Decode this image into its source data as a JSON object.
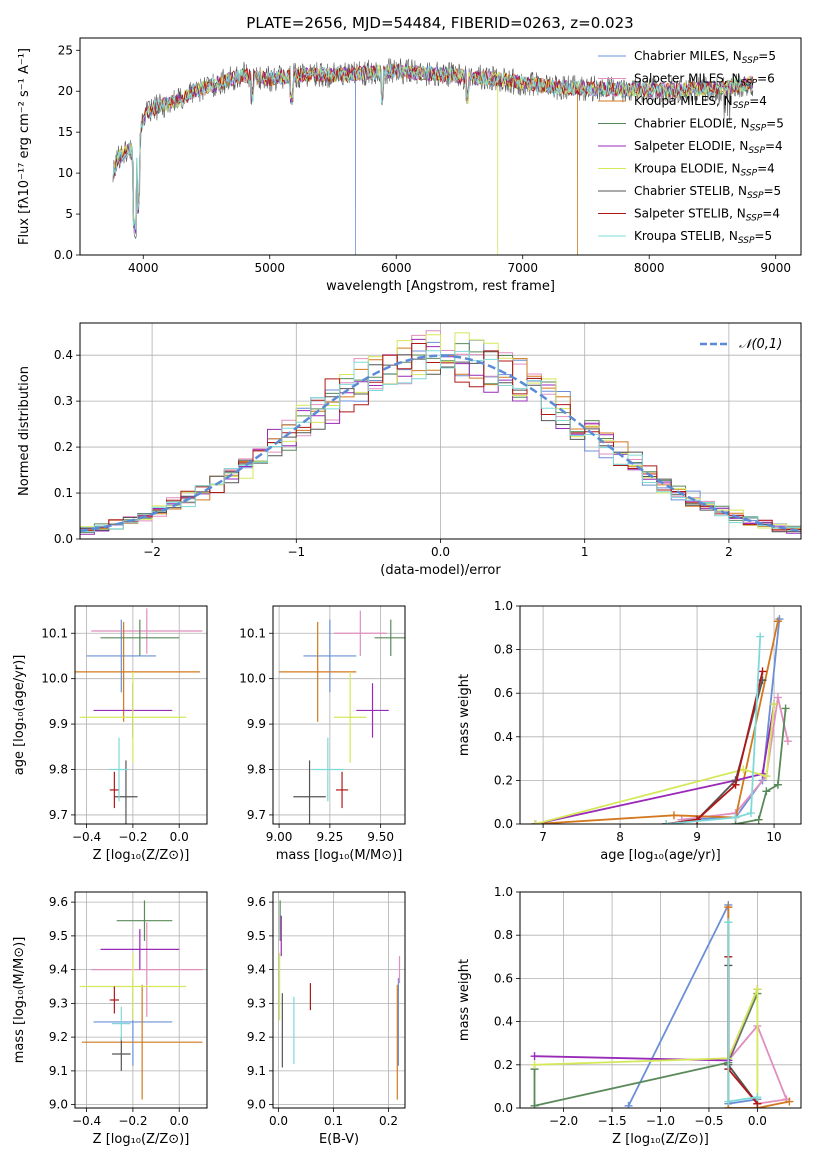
{
  "figure": {
    "title": "PLATE=2656, MJD=54484, FIBERID=0263, z=0.023"
  },
  "colors": {
    "Chabrier MILES": "#6a8fd8",
    "Salpeter MILES": "#e08fbf",
    "Kroupa MILES": "#d2781e",
    "Chabrier ELODIE": "#5a8a5a",
    "Salpeter ELODIE": "#9a2ab8",
    "Kroupa ELODIE": "#d4e85a",
    "Chabrier STELIB": "#555555",
    "Salpeter STELIB": "#b01818",
    "Kroupa STELIB": "#7fd8d8"
  },
  "chart_data": [
    {
      "id": "spectrum",
      "type": "line",
      "xlabel": "wavelength [Angstrom, rest frame]",
      "ylabel": "Flux [fλ10⁻¹⁷ erg cm⁻² s⁻¹ A⁻¹]",
      "xlim": [
        3500,
        9200
      ],
      "ylim": [
        0,
        26.5
      ],
      "xticks": [
        4000,
        5000,
        6000,
        7000,
        8000,
        9000
      ],
      "yticks": [
        0,
        5,
        10,
        15,
        20,
        25
      ],
      "grid": false,
      "legend_position": "upper right",
      "continuum_x": [
        3750,
        3800,
        3900,
        3950,
        4000,
        4100,
        4200,
        4300,
        4400,
        4600,
        4800,
        5000,
        5200,
        5400,
        5600,
        5800,
        6000,
        6200,
        6400,
        6600,
        6800,
        7000,
        7200,
        7400,
        7600,
        7800,
        8000,
        8200,
        8400,
        8600,
        8800
      ],
      "continuum_y": [
        9,
        12,
        13,
        11,
        17,
        18,
        18.5,
        19,
        20,
        21,
        22,
        21.5,
        22,
        22,
        22,
        22.3,
        22.5,
        22.2,
        22,
        21.7,
        21.5,
        21,
        20.6,
        20.4,
        20.3,
        20.2,
        20.1,
        20.1,
        20.3,
        20.4,
        21
      ],
      "series": [
        {
          "name": "Chabrier MILES, N_SSP=5",
          "color_key": "Chabrier MILES",
          "dropout_x": 5680
        },
        {
          "name": "Salpeter MILES, N_SSP=6",
          "color_key": "Salpeter MILES",
          "dropout_x": null
        },
        {
          "name": "Kroupa MILES, N_SSP=4",
          "color_key": "Kroupa MILES",
          "dropout_x": 7430
        },
        {
          "name": "Chabrier ELODIE, N_SSP=5",
          "color_key": "Chabrier ELODIE",
          "dropout_x": null
        },
        {
          "name": "Salpeter ELODIE, N_SSP=4",
          "color_key": "Salpeter ELODIE",
          "dropout_x": null
        },
        {
          "name": "Kroupa ELODIE, N_SSP=4",
          "color_key": "Kroupa ELODIE",
          "dropout_x": 6800
        },
        {
          "name": "Chabrier STELIB, N_SSP=5",
          "color_key": "Chabrier STELIB",
          "dropout_x": null
        },
        {
          "name": "Salpeter STELIB, N_SSP=4",
          "color_key": "Salpeter STELIB",
          "dropout_x": null
        },
        {
          "name": "Kroupa STELIB, N_SSP=5",
          "color_key": "Kroupa STELIB",
          "dropout_x": null
        }
      ]
    },
    {
      "id": "residuals",
      "type": "line",
      "xlabel": "(data-model)/error",
      "ylabel": "Normed distribution",
      "xlim": [
        -2.5,
        2.5
      ],
      "ylim": [
        0,
        0.47
      ],
      "xticks": [
        -2,
        -1,
        0,
        1,
        2
      ],
      "yticks": [
        0.0,
        0.1,
        0.2,
        0.3,
        0.4
      ],
      "grid": true,
      "legend_position": "upper right",
      "bin_width": 0.1,
      "reference": {
        "label": "𝒩(0,1)",
        "mean": 0,
        "sigma": 1
      },
      "series_keys": [
        "Chabrier MILES",
        "Salpeter MILES",
        "Kroupa MILES",
        "Chabrier ELODIE",
        "Salpeter ELODIE",
        "Kroupa ELODIE",
        "Chabrier STELIB",
        "Salpeter STELIB",
        "Kroupa STELIB"
      ]
    },
    {
      "id": "age_vs_Z",
      "type": "scatter",
      "xlabel": "Z [log₁₀(Z/Z⊙)]",
      "ylabel": "age  [log₁₀(age/yr)]",
      "xlim": [
        -0.45,
        0.12
      ],
      "ylim": [
        9.68,
        10.16
      ],
      "xticks": [
        -0.4,
        -0.2,
        0.0
      ],
      "yticks": [
        9.7,
        9.8,
        9.9,
        10.0,
        10.1
      ],
      "grid": true,
      "points": [
        {
          "key": "Chabrier MILES",
          "x": -0.25,
          "xerr": 0.15,
          "y": 10.05,
          "yerr": 0.08
        },
        {
          "key": "Salpeter MILES",
          "x": -0.14,
          "xerr": 0.24,
          "y": 10.105,
          "yerr": 0.05
        },
        {
          "key": "Kroupa MILES",
          "x": -0.24,
          "xerr": 0.33,
          "y": 10.015,
          "yerr": 0.11
        },
        {
          "key": "Chabrier ELODIE",
          "x": -0.17,
          "xerr": 0.17,
          "y": 10.09,
          "yerr": 0.04
        },
        {
          "key": "Salpeter ELODIE",
          "x": -0.2,
          "xerr": 0.17,
          "y": 9.93,
          "yerr": 0.06
        },
        {
          "key": "Kroupa ELODIE",
          "x": -0.2,
          "xerr": 0.23,
          "y": 9.915,
          "yerr": 0.1
        },
        {
          "key": "Chabrier STELIB",
          "x": -0.23,
          "xerr": 0.05,
          "y": 9.74,
          "yerr": 0.08
        },
        {
          "key": "Salpeter STELIB",
          "x": -0.28,
          "xerr": 0.02,
          "y": 9.755,
          "yerr": 0.04
        },
        {
          "key": "Kroupa STELIB",
          "x": -0.26,
          "xerr": 0.04,
          "y": 9.8,
          "yerr": 0.07
        }
      ]
    },
    {
      "id": "age_vs_mass",
      "type": "scatter",
      "xlabel": "mass [log₁₀(M/M⊙)]",
      "ylabel": "",
      "xlim": [
        8.97,
        9.62
      ],
      "ylim": [
        9.68,
        10.16
      ],
      "xticks": [
        9.0,
        9.25,
        9.5
      ],
      "yticks": [
        9.7,
        9.8,
        9.9,
        10.0,
        10.1
      ],
      "grid": true,
      "points": [
        {
          "key": "Chabrier MILES",
          "x": 9.25,
          "xerr": 0.13,
          "y": 10.05,
          "yerr": 0.08
        },
        {
          "key": "Salpeter MILES",
          "x": 9.4,
          "xerr": 0.13,
          "y": 10.1,
          "yerr": 0.05
        },
        {
          "key": "Kroupa MILES",
          "x": 9.19,
          "xerr": 0.19,
          "y": 10.015,
          "yerr": 0.11
        },
        {
          "key": "Chabrier ELODIE",
          "x": 9.55,
          "xerr": 0.08,
          "y": 10.09,
          "yerr": 0.04
        },
        {
          "key": "Salpeter ELODIE",
          "x": 9.46,
          "xerr": 0.08,
          "y": 9.93,
          "yerr": 0.06
        },
        {
          "key": "Kroupa ELODIE",
          "x": 9.35,
          "xerr": 0.08,
          "y": 9.915,
          "yerr": 0.1
        },
        {
          "key": "Chabrier STELIB",
          "x": 9.15,
          "xerr": 0.08,
          "y": 9.74,
          "yerr": 0.08
        },
        {
          "key": "Salpeter STELIB",
          "x": 9.31,
          "xerr": 0.03,
          "y": 9.755,
          "yerr": 0.04
        },
        {
          "key": "Kroupa STELIB",
          "x": 9.24,
          "xerr": 0.08,
          "y": 9.8,
          "yerr": 0.07
        }
      ]
    },
    {
      "id": "weight_vs_age",
      "type": "line",
      "xlabel": "age  [log₁₀(age/yr)]",
      "ylabel": "mass weight",
      "xlim": [
        6.7,
        10.35
      ],
      "ylim": [
        0,
        1.0
      ],
      "xticks": [
        7,
        8,
        9,
        10
      ],
      "yticks": [
        0.0,
        0.2,
        0.4,
        0.6,
        0.8,
        1.0
      ],
      "grid": true,
      "series": [
        {
          "key": "Chabrier MILES",
          "x": [
            8.8,
            9.5,
            9.85,
            10.07
          ],
          "y": [
            0.02,
            0.03,
            0.2,
            0.94
          ]
        },
        {
          "key": "Salpeter MILES",
          "x": [
            8.8,
            9.5,
            9.9,
            10.05,
            10.18
          ],
          "y": [
            0.02,
            0.05,
            0.22,
            0.58,
            0.38
          ]
        },
        {
          "key": "Kroupa MILES",
          "x": [
            6.9,
            8.7,
            9.5,
            10.05
          ],
          "y": [
            0.0,
            0.04,
            0.03,
            0.93
          ]
        },
        {
          "key": "Chabrier ELODIE",
          "x": [
            9.5,
            9.8,
            9.9,
            10.05,
            10.15
          ],
          "y": [
            0.0,
            0.02,
            0.15,
            0.18,
            0.53
          ]
        },
        {
          "key": "Salpeter ELODIE",
          "x": [
            6.9,
            9.5,
            9.85,
            10.0
          ],
          "y": [
            0.0,
            0.2,
            0.23,
            0.55
          ]
        },
        {
          "key": "Kroupa ELODIE",
          "x": [
            6.9,
            9.6,
            9.9,
            10.0
          ],
          "y": [
            0.0,
            0.25,
            0.22,
            0.55
          ]
        },
        {
          "key": "Chabrier STELIB",
          "x": [
            8.6,
            9.0,
            9.5,
            9.85
          ],
          "y": [
            0.0,
            0.02,
            0.2,
            0.66
          ]
        },
        {
          "key": "Salpeter STELIB",
          "x": [
            8.6,
            9.0,
            9.5,
            9.85
          ],
          "y": [
            0.0,
            0.02,
            0.18,
            0.7
          ]
        },
        {
          "key": "Kroupa STELIB",
          "x": [
            8.6,
            9.5,
            9.7,
            9.82
          ],
          "y": [
            0.0,
            0.03,
            0.05,
            0.86
          ]
        }
      ]
    },
    {
      "id": "mass_vs_Z",
      "type": "scatter",
      "xlabel": "Z [log₁₀(Z/Z⊙)]",
      "ylabel": "mass [log₁₀(M/M⊙)]",
      "xlim": [
        -0.45,
        0.12
      ],
      "ylim": [
        8.99,
        9.63
      ],
      "xticks": [
        -0.4,
        -0.2,
        0.0
      ],
      "yticks": [
        9.0,
        9.1,
        9.2,
        9.3,
        9.4,
        9.5,
        9.6
      ],
      "grid": true,
      "points": [
        {
          "key": "Chabrier MILES",
          "x": -0.2,
          "xerr": 0.17,
          "y": 9.245,
          "yerr": 0.13
        },
        {
          "key": "Salpeter MILES",
          "x": -0.14,
          "xerr": 0.24,
          "y": 9.4,
          "yerr": 0.14
        },
        {
          "key": "Kroupa MILES",
          "x": -0.16,
          "xerr": 0.26,
          "y": 9.185,
          "yerr": 0.17
        },
        {
          "key": "Chabrier ELODIE",
          "x": -0.15,
          "xerr": 0.12,
          "y": 9.545,
          "yerr": 0.06
        },
        {
          "key": "Salpeter ELODIE",
          "x": -0.17,
          "xerr": 0.17,
          "y": 9.46,
          "yerr": 0.06
        },
        {
          "key": "Kroupa ELODIE",
          "x": -0.2,
          "xerr": 0.23,
          "y": 9.35,
          "yerr": 0.1
        },
        {
          "key": "Chabrier STELIB",
          "x": -0.25,
          "xerr": 0.04,
          "y": 9.15,
          "yerr": 0.05
        },
        {
          "key": "Salpeter STELIB",
          "x": -0.28,
          "xerr": 0.02,
          "y": 9.31,
          "yerr": 0.04
        },
        {
          "key": "Kroupa STELIB",
          "x": -0.25,
          "xerr": 0.04,
          "y": 9.24,
          "yerr": 0.05
        }
      ]
    },
    {
      "id": "mass_vs_ebv",
      "type": "scatter",
      "xlabel": "E(B-V)",
      "ylabel": "",
      "xlim": [
        -0.01,
        0.23
      ],
      "ylim": [
        8.99,
        9.63
      ],
      "xticks": [
        0.0,
        0.1,
        0.2
      ],
      "yticks": [
        9.0,
        9.1,
        9.2,
        9.3,
        9.4,
        9.5,
        9.6
      ],
      "grid": true,
      "points": [
        {
          "key": "Chabrier MILES",
          "x": 0.218,
          "xerr": 0,
          "y": 9.245,
          "yerr": 0.13
        },
        {
          "key": "Salpeter MILES",
          "x": 0.22,
          "xerr": 0,
          "y": 9.4,
          "yerr": 0.04
        },
        {
          "key": "Kroupa MILES",
          "x": 0.216,
          "xerr": 0,
          "y": 9.185,
          "yerr": 0.17
        },
        {
          "key": "Chabrier ELODIE",
          "x": 0.003,
          "xerr": 0,
          "y": 9.545,
          "yerr": 0.06
        },
        {
          "key": "Salpeter ELODIE",
          "x": 0.005,
          "xerr": 0,
          "y": 9.5,
          "yerr": 0.06
        },
        {
          "key": "Kroupa ELODIE",
          "x": 0.002,
          "xerr": 0,
          "y": 9.35,
          "yerr": 0.1
        },
        {
          "key": "Chabrier STELIB",
          "x": 0.007,
          "xerr": 0,
          "y": 9.22,
          "yerr": 0.11
        },
        {
          "key": "Salpeter STELIB",
          "x": 0.058,
          "xerr": 0,
          "y": 9.32,
          "yerr": 0.04
        },
        {
          "key": "Kroupa STELIB",
          "x": 0.028,
          "xerr": 0,
          "y": 9.22,
          "yerr": 0.1
        }
      ]
    },
    {
      "id": "weight_vs_Z",
      "type": "line",
      "xlabel": "Z [log₁₀(Z/Z⊙)]",
      "ylabel": "mass weight",
      "xlim": [
        -2.45,
        0.45
      ],
      "ylim": [
        0,
        1.0
      ],
      "xticks": [
        -2.0,
        -1.5,
        -1.0,
        -0.5,
        0.0
      ],
      "yticks": [
        0.0,
        0.2,
        0.4,
        0.6,
        0.8,
        1.0
      ],
      "grid": true,
      "series": [
        {
          "key": "Chabrier MILES",
          "x": [
            -1.33,
            -0.3,
            -0.3,
            0.0
          ],
          "y": [
            0.01,
            0.94,
            0.02,
            0.04
          ]
        },
        {
          "key": "Salpeter MILES",
          "x": [
            -0.3,
            0.0,
            0.3,
            0.0
          ],
          "y": [
            0.22,
            0.38,
            0.04,
            0.02
          ]
        },
        {
          "key": "Kroupa MILES",
          "x": [
            -0.3,
            -0.3,
            0.0,
            0.33
          ],
          "y": [
            0.93,
            0.0,
            0.0,
            0.03
          ]
        },
        {
          "key": "Chabrier ELODIE",
          "x": [
            -2.3,
            -2.3,
            -0.3,
            0.0
          ],
          "y": [
            0.18,
            0.01,
            0.21,
            0.53
          ]
        },
        {
          "key": "Salpeter ELODIE",
          "x": [
            -2.3,
            -0.3,
            0.0
          ],
          "y": [
            0.24,
            0.22,
            0.55
          ]
        },
        {
          "key": "Kroupa ELODIE",
          "x": [
            -2.3,
            -0.3,
            0.0,
            0.0
          ],
          "y": [
            0.2,
            0.23,
            0.55,
            0.02
          ]
        },
        {
          "key": "Chabrier STELIB",
          "x": [
            -0.3,
            -0.3,
            0.0
          ],
          "y": [
            0.66,
            0.2,
            0.02
          ]
        },
        {
          "key": "Salpeter STELIB",
          "x": [
            -0.3,
            -0.3,
            0.0
          ],
          "y": [
            0.7,
            0.18,
            0.02
          ]
        },
        {
          "key": "Kroupa STELIB",
          "x": [
            -0.3,
            -0.3,
            0.0
          ],
          "y": [
            0.86,
            0.03,
            0.05
          ]
        }
      ]
    }
  ]
}
